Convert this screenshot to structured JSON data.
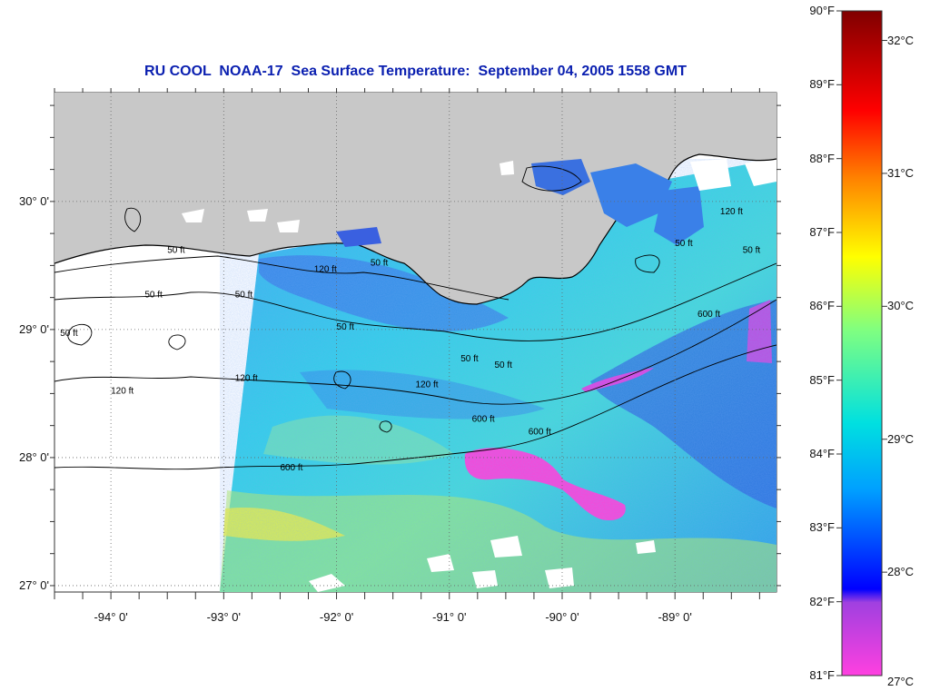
{
  "title": "RU COOL  NOAA-17  Sea Surface Temperature:  September 04, 2005 1558 GMT",
  "latitude_labels": [
    {
      "label": "30° 0'",
      "lat": 30.0
    },
    {
      "label": "29° 0'",
      "lat": 29.0
    },
    {
      "label": "28° 0'",
      "lat": 28.0
    },
    {
      "label": "27° 0'",
      "lat": 27.0
    }
  ],
  "longitude_labels": [
    {
      "label": "-94° 0'",
      "lon": -94.0
    },
    {
      "label": "-93° 0'",
      "lon": -93.0
    },
    {
      "label": "-92° 0'",
      "lon": -92.0
    },
    {
      "label": "-91° 0'",
      "lon": -91.0
    },
    {
      "label": "-90° 0'",
      "lon": -90.0
    },
    {
      "label": "-89° 0'",
      "lon": -89.0
    }
  ],
  "map_extent": {
    "lon_min": -94.5,
    "lon_max": -88.1,
    "lat_min": 26.95,
    "lat_max": 30.85
  },
  "colorbar": {
    "fahrenheit_labels": [
      "90°F",
      "89°F",
      "88°F",
      "87°F",
      "86°F",
      "85°F",
      "84°F",
      "83°F",
      "82°F",
      "81°F"
    ],
    "celsius_labels": [
      "32°C",
      "31°C",
      "30°C",
      "29°C",
      "28°C",
      "27°C"
    ],
    "colors": [
      "#ff40e0",
      "#a040e0",
      "#0000ff",
      "#00a0ff",
      "#00e0e0",
      "#80ff80",
      "#ffff00",
      "#ff8000",
      "#ff0000",
      "#800000"
    ]
  },
  "contour_labels": [
    {
      "text": "50 ft",
      "lon": -93.5,
      "lat": 29.6
    },
    {
      "text": "50 ft",
      "lon": -93.7,
      "lat": 29.25
    },
    {
      "text": "50 ft",
      "lon": -92.9,
      "lat": 29.25
    },
    {
      "text": "120 ft",
      "lon": -92.2,
      "lat": 29.45
    },
    {
      "text": "50 ft",
      "lon": -91.7,
      "lat": 29.5
    },
    {
      "text": "50 ft",
      "lon": -92.0,
      "lat": 29.0
    },
    {
      "text": "120 ft",
      "lon": -92.9,
      "lat": 28.6
    },
    {
      "text": "120 ft",
      "lon": -91.3,
      "lat": 28.55
    },
    {
      "text": "50 ft",
      "lon": -90.9,
      "lat": 28.75
    },
    {
      "text": "50 ft",
      "lon": -90.6,
      "lat": 28.7
    },
    {
      "text": "600 ft",
      "lon": -90.8,
      "lat": 28.28
    },
    {
      "text": "600 ft",
      "lon": -90.3,
      "lat": 28.18
    },
    {
      "text": "600 ft",
      "lon": -92.5,
      "lat": 27.9
    },
    {
      "text": "600 ft",
      "lon": -88.8,
      "lat": 29.1
    },
    {
      "text": "120 ft",
      "lon": -88.6,
      "lat": 29.9
    },
    {
      "text": "50 ft",
      "lon": -89.0,
      "lat": 29.65
    },
    {
      "text": "50 ft",
      "lon": -88.4,
      "lat": 29.6
    },
    {
      "text": "50 ft",
      "lon": -94.45,
      "lat": 28.95
    },
    {
      "text": "120 ft",
      "lon": -94.0,
      "lat": 28.5
    }
  ]
}
